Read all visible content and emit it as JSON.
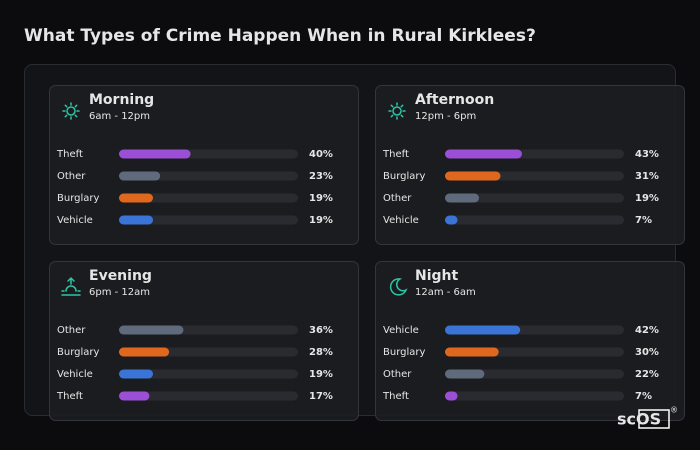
{
  "title": "What Types of Crime Happen When in Rural Kirklees?",
  "brand": "scOS",
  "brand_mark": "®",
  "chart_data": [
    {
      "type": "bar",
      "title": "Morning",
      "subtitle": "6am - 12pm",
      "categories": [
        "Theft",
        "Other",
        "Burglary",
        "Vehicle"
      ],
      "values": [
        40,
        23,
        19,
        19
      ],
      "value_labels": [
        "40%",
        "23%",
        "19%",
        "19%"
      ],
      "colors": [
        "#9b4fd6",
        "#5f6b7d",
        "#e0681e",
        "#3a74d6"
      ],
      "xlim": [
        0,
        100
      ]
    },
    {
      "type": "bar",
      "title": "Afternoon",
      "subtitle": "12pm - 6pm",
      "categories": [
        "Theft",
        "Burglary",
        "Other",
        "Vehicle"
      ],
      "values": [
        43,
        31,
        19,
        7
      ],
      "value_labels": [
        "43%",
        "31%",
        "19%",
        "7%"
      ],
      "colors": [
        "#9b4fd6",
        "#e0681e",
        "#5f6b7d",
        "#3a74d6"
      ],
      "xlim": [
        0,
        100
      ]
    },
    {
      "type": "bar",
      "title": "Evening",
      "subtitle": "6pm - 12am",
      "categories": [
        "Other",
        "Burglary",
        "Vehicle",
        "Theft"
      ],
      "values": [
        36,
        28,
        19,
        17
      ],
      "value_labels": [
        "36%",
        "28%",
        "19%",
        "17%"
      ],
      "colors": [
        "#5f6b7d",
        "#e0681e",
        "#3a74d6",
        "#9b4fd6"
      ],
      "xlim": [
        0,
        100
      ]
    },
    {
      "type": "bar",
      "title": "Night",
      "subtitle": "12am - 6am",
      "categories": [
        "Vehicle",
        "Burglary",
        "Other",
        "Theft"
      ],
      "values": [
        42,
        30,
        22,
        7
      ],
      "value_labels": [
        "42%",
        "30%",
        "22%",
        "7%"
      ],
      "colors": [
        "#3a74d6",
        "#e0681e",
        "#5f6b7d",
        "#9b4fd6"
      ],
      "xlim": [
        0,
        100
      ]
    }
  ]
}
